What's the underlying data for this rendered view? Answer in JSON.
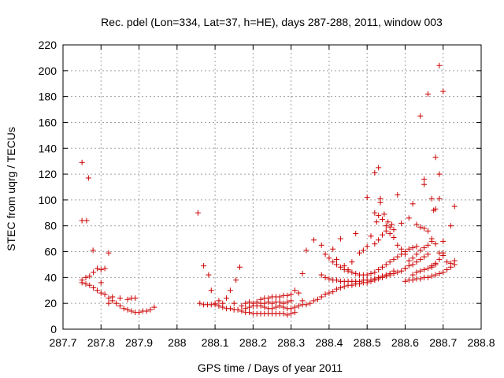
{
  "chart_data": {
    "type": "scatter",
    "title": "Rec. pdel (Lon=334, Lat=37, h=HE), days 287-288, 2011, window 003",
    "xlabel": "GPS time / Days of year 2011",
    "ylabel": "STEC from uqrg / TECUs",
    "xlim": [
      287.7,
      288.8
    ],
    "ylim": [
      0,
      220
    ],
    "x_ticks": [
      "287.7",
      "287.8",
      "287.9",
      "288",
      "288.1",
      "288.2",
      "288.3",
      "288.4",
      "288.5",
      "288.6",
      "288.7",
      "288.8"
    ],
    "y_ticks": [
      "0",
      "20",
      "40",
      "60",
      "80",
      "100",
      "120",
      "140",
      "160",
      "180",
      "200",
      "220"
    ],
    "grid": true,
    "marker": "+",
    "color": "#cc0000",
    "points": [
      [
        287.75,
        129
      ],
      [
        287.767,
        117
      ],
      [
        287.75,
        84
      ],
      [
        287.762,
        84
      ],
      [
        287.779,
        61
      ],
      [
        287.82,
        59
      ],
      [
        287.79,
        47
      ],
      [
        287.8,
        46
      ],
      [
        287.81,
        47
      ],
      [
        287.78,
        44
      ],
      [
        287.77,
        41
      ],
      [
        287.76,
        40
      ],
      [
        287.75,
        38
      ],
      [
        287.75,
        36
      ],
      [
        287.76,
        35
      ],
      [
        287.77,
        34
      ],
      [
        287.78,
        32
      ],
      [
        287.79,
        30
      ],
      [
        287.8,
        28
      ],
      [
        287.81,
        27
      ],
      [
        287.82,
        24
      ],
      [
        287.83,
        22
      ],
      [
        287.84,
        20
      ],
      [
        287.85,
        18
      ],
      [
        287.86,
        16
      ],
      [
        287.87,
        15
      ],
      [
        287.88,
        14
      ],
      [
        287.89,
        13
      ],
      [
        287.9,
        13
      ],
      [
        287.91,
        14
      ],
      [
        287.92,
        14
      ],
      [
        287.93,
        15
      ],
      [
        287.94,
        17
      ],
      [
        287.82,
        20
      ],
      [
        287.83,
        25
      ],
      [
        287.85,
        24
      ],
      [
        287.87,
        23
      ],
      [
        287.88,
        24
      ],
      [
        287.89,
        24
      ],
      [
        287.8,
        36
      ],
      [
        288.055,
        90
      ],
      [
        288.07,
        49
      ],
      [
        288.083,
        42
      ],
      [
        288.09,
        30
      ],
      [
        288.165,
        48
      ],
      [
        288.155,
        38
      ],
      [
        288.14,
        30
      ],
      [
        288.13,
        24
      ],
      [
        288.06,
        20
      ],
      [
        288.07,
        19
      ],
      [
        288.08,
        19
      ],
      [
        288.09,
        19
      ],
      [
        288.1,
        19
      ],
      [
        288.11,
        18
      ],
      [
        288.12,
        17
      ],
      [
        288.13,
        16
      ],
      [
        288.14,
        16
      ],
      [
        288.15,
        15
      ],
      [
        288.16,
        15
      ],
      [
        288.17,
        14
      ],
      [
        288.18,
        13
      ],
      [
        288.19,
        13
      ],
      [
        288.2,
        12
      ],
      [
        288.21,
        12
      ],
      [
        288.22,
        12
      ],
      [
        288.23,
        12
      ],
      [
        288.24,
        12
      ],
      [
        288.25,
        12
      ],
      [
        288.26,
        12
      ],
      [
        288.27,
        12
      ],
      [
        288.28,
        12
      ],
      [
        288.29,
        11
      ],
      [
        288.3,
        12
      ],
      [
        288.31,
        13
      ],
      [
        288.1,
        20
      ],
      [
        288.11,
        22
      ],
      [
        288.12,
        20
      ],
      [
        288.15,
        20
      ],
      [
        288.17,
        18
      ],
      [
        288.18,
        20
      ],
      [
        288.19,
        21
      ],
      [
        288.2,
        20
      ],
      [
        288.21,
        21
      ],
      [
        288.22,
        20
      ],
      [
        288.23,
        20
      ],
      [
        288.24,
        21
      ],
      [
        288.25,
        20
      ],
      [
        288.26,
        21
      ],
      [
        288.27,
        21
      ],
      [
        288.28,
        20
      ],
      [
        288.29,
        21
      ],
      [
        288.3,
        22
      ],
      [
        288.18,
        16
      ],
      [
        288.19,
        17
      ],
      [
        288.2,
        18
      ],
      [
        288.21,
        18
      ],
      [
        288.22,
        18
      ],
      [
        288.23,
        17
      ],
      [
        288.24,
        16
      ],
      [
        288.25,
        16
      ],
      [
        288.26,
        17
      ],
      [
        288.27,
        18
      ],
      [
        288.28,
        17
      ],
      [
        288.29,
        16
      ],
      [
        288.3,
        16
      ],
      [
        288.31,
        17
      ],
      [
        288.22,
        23
      ],
      [
        288.23,
        24
      ],
      [
        288.24,
        24
      ],
      [
        288.25,
        25
      ],
      [
        288.26,
        25
      ],
      [
        288.27,
        25
      ],
      [
        288.28,
        26
      ],
      [
        288.29,
        26
      ],
      [
        288.3,
        27
      ],
      [
        288.31,
        30
      ],
      [
        288.32,
        28
      ],
      [
        288.33,
        43
      ],
      [
        288.33,
        22
      ],
      [
        288.32,
        18
      ],
      [
        288.33,
        19
      ],
      [
        288.34,
        19
      ],
      [
        288.35,
        20
      ],
      [
        288.36,
        22
      ],
      [
        288.37,
        23
      ],
      [
        288.38,
        25
      ],
      [
        288.39,
        27
      ],
      [
        288.4,
        28
      ],
      [
        288.41,
        29
      ],
      [
        288.42,
        31
      ],
      [
        288.43,
        32
      ],
      [
        288.44,
        33
      ],
      [
        288.45,
        34
      ],
      [
        288.46,
        34
      ],
      [
        288.47,
        35
      ],
      [
        288.48,
        35
      ],
      [
        288.49,
        36
      ],
      [
        288.5,
        36
      ],
      [
        288.51,
        37
      ],
      [
        288.52,
        38
      ],
      [
        288.53,
        39
      ],
      [
        288.54,
        40
      ],
      [
        288.55,
        41
      ],
      [
        288.56,
        42
      ],
      [
        288.57,
        43
      ],
      [
        288.58,
        44
      ],
      [
        288.59,
        45
      ],
      [
        288.6,
        47
      ],
      [
        288.61,
        49
      ],
      [
        288.62,
        50
      ],
      [
        288.63,
        52
      ],
      [
        288.64,
        54
      ],
      [
        288.65,
        56
      ],
      [
        288.66,
        58
      ],
      [
        288.34,
        61
      ],
      [
        288.36,
        69
      ],
      [
        288.38,
        65
      ],
      [
        288.39,
        58
      ],
      [
        288.4,
        55
      ],
      [
        288.41,
        52
      ],
      [
        288.42,
        50
      ],
      [
        288.43,
        48
      ],
      [
        288.44,
        46
      ],
      [
        288.45,
        45
      ],
      [
        288.46,
        44
      ],
      [
        288.47,
        43
      ],
      [
        288.48,
        42
      ],
      [
        288.49,
        42
      ],
      [
        288.5,
        42
      ],
      [
        288.51,
        43
      ],
      [
        288.52,
        44
      ],
      [
        288.53,
        46
      ],
      [
        288.54,
        48
      ],
      [
        288.55,
        50
      ],
      [
        288.56,
        52
      ],
      [
        288.57,
        54
      ],
      [
        288.58,
        56
      ],
      [
        288.59,
        58
      ],
      [
        288.6,
        60
      ],
      [
        288.61,
        62
      ],
      [
        288.62,
        63
      ],
      [
        288.63,
        64
      ],
      [
        288.38,
        42
      ],
      [
        288.39,
        40
      ],
      [
        288.4,
        39
      ],
      [
        288.41,
        38
      ],
      [
        288.42,
        38
      ],
      [
        288.43,
        37
      ],
      [
        288.44,
        37
      ],
      [
        288.45,
        37
      ],
      [
        288.46,
        37
      ],
      [
        288.47,
        37
      ],
      [
        288.48,
        37
      ],
      [
        288.49,
        38
      ],
      [
        288.5,
        38
      ],
      [
        288.51,
        38
      ],
      [
        288.52,
        39
      ],
      [
        288.53,
        40
      ],
      [
        288.54,
        41
      ],
      [
        288.55,
        42
      ],
      [
        288.56,
        43
      ],
      [
        288.57,
        45
      ],
      [
        288.41,
        62
      ],
      [
        288.42,
        54
      ],
      [
        288.43,
        70
      ],
      [
        288.44,
        49
      ],
      [
        288.45,
        46
      ],
      [
        288.46,
        52
      ],
      [
        288.47,
        74
      ],
      [
        288.48,
        59
      ],
      [
        288.49,
        61
      ],
      [
        288.5,
        64
      ],
      [
        288.51,
        72
      ],
      [
        288.52,
        66
      ],
      [
        288.53,
        69
      ],
      [
        288.54,
        73
      ],
      [
        288.55,
        76
      ],
      [
        288.56,
        74
      ],
      [
        288.57,
        71
      ],
      [
        288.58,
        65
      ],
      [
        288.59,
        62
      ],
      [
        288.6,
        58
      ],
      [
        288.5,
        102
      ],
      [
        288.52,
        121
      ],
      [
        288.53,
        125
      ],
      [
        288.535,
        98
      ],
      [
        288.535,
        101
      ],
      [
        288.52,
        90
      ],
      [
        288.53,
        88
      ],
      [
        288.54,
        85
      ],
      [
        288.55,
        80
      ],
      [
        288.56,
        79
      ],
      [
        288.57,
        77
      ],
      [
        288.58,
        104
      ],
      [
        288.59,
        82
      ],
      [
        288.61,
        86
      ],
      [
        288.62,
        97
      ],
      [
        288.63,
        81
      ],
      [
        288.64,
        79
      ],
      [
        288.65,
        78
      ],
      [
        288.66,
        76
      ],
      [
        288.67,
        70
      ],
      [
        288.68,
        66
      ],
      [
        288.525,
        83
      ],
      [
        288.545,
        89
      ],
      [
        288.555,
        83
      ],
      [
        288.565,
        81
      ],
      [
        288.64,
        165
      ],
      [
        288.66,
        182
      ],
      [
        288.7,
        184
      ],
      [
        288.69,
        204
      ],
      [
        288.68,
        133
      ],
      [
        288.69,
        120
      ],
      [
        288.65,
        116
      ],
      [
        288.65,
        112
      ],
      [
        288.67,
        101
      ],
      [
        288.69,
        101
      ],
      [
        288.68,
        93
      ],
      [
        288.675,
        92
      ],
      [
        288.73,
        95
      ],
      [
        288.72,
        80
      ],
      [
        288.7,
        68
      ],
      [
        288.69,
        59
      ],
      [
        288.68,
        50
      ],
      [
        288.67,
        48
      ],
      [
        288.6,
        37
      ],
      [
        288.61,
        38
      ],
      [
        288.62,
        38
      ],
      [
        288.63,
        39
      ],
      [
        288.64,
        39
      ],
      [
        288.65,
        40
      ],
      [
        288.66,
        40
      ],
      [
        288.67,
        41
      ],
      [
        288.68,
        42
      ],
      [
        288.69,
        43
      ],
      [
        288.7,
        44
      ],
      [
        288.71,
        46
      ],
      [
        288.72,
        48
      ],
      [
        288.73,
        50
      ],
      [
        288.62,
        42
      ],
      [
        288.63,
        44
      ],
      [
        288.64,
        45
      ],
      [
        288.65,
        46
      ],
      [
        288.66,
        47
      ],
      [
        288.67,
        49
      ],
      [
        288.68,
        51
      ],
      [
        288.69,
        54
      ],
      [
        288.7,
        57
      ],
      [
        288.71,
        52
      ],
      [
        288.72,
        51
      ],
      [
        288.73,
        53
      ],
      [
        288.6,
        47
      ],
      [
        288.61,
        53
      ],
      [
        288.62,
        55
      ],
      [
        288.63,
        58
      ],
      [
        288.64,
        61
      ],
      [
        288.65,
        63
      ],
      [
        288.66,
        65
      ],
      [
        288.67,
        68
      ],
      [
        288.7,
        59
      ]
    ]
  }
}
